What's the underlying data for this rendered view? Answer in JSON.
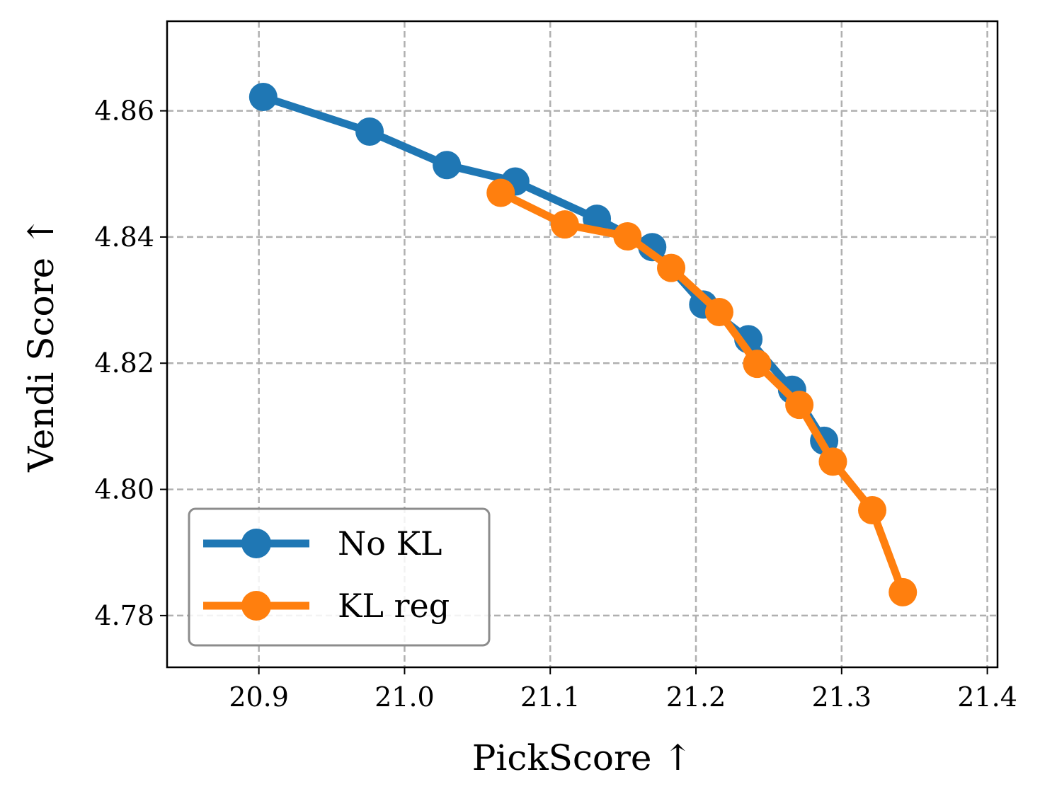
{
  "chart_data": {
    "type": "line",
    "title": "",
    "xlabel": "PickScore ↑",
    "ylabel": "Vendi Score ↑",
    "xlim": [
      20.837,
      21.407
    ],
    "ylim": [
      4.7718,
      4.8742
    ],
    "xticks": [
      20.9,
      21.0,
      21.1,
      21.2,
      21.3,
      21.4
    ],
    "xtick_labels": [
      "20.9",
      "21.0",
      "21.1",
      "21.2",
      "21.3",
      "21.4"
    ],
    "yticks": [
      4.78,
      4.8,
      4.82,
      4.84,
      4.86
    ],
    "ytick_labels": [
      "4.78",
      "4.80",
      "4.82",
      "4.84",
      "4.86"
    ],
    "grid": true,
    "legend_position": "lower-left",
    "series": [
      {
        "name": "No KL",
        "color": "#1f77b4",
        "x": [
          20.903,
          20.976,
          21.029,
          21.076,
          21.132,
          21.17,
          21.205,
          21.236,
          21.266,
          21.288
        ],
        "y": [
          4.8622,
          4.8567,
          4.8514,
          4.8488,
          4.8429,
          4.8384,
          4.8293,
          4.8238,
          4.8158,
          4.8077
        ]
      },
      {
        "name": "KL reg",
        "color": "#ff7f0e",
        "x": [
          21.066,
          21.11,
          21.153,
          21.183,
          21.216,
          21.242,
          21.271,
          21.294,
          21.321,
          21.342
        ],
        "y": [
          4.847,
          4.842,
          4.8401,
          4.8351,
          4.8281,
          4.8199,
          4.8134,
          4.8044,
          4.7967,
          4.7837
        ]
      }
    ]
  }
}
